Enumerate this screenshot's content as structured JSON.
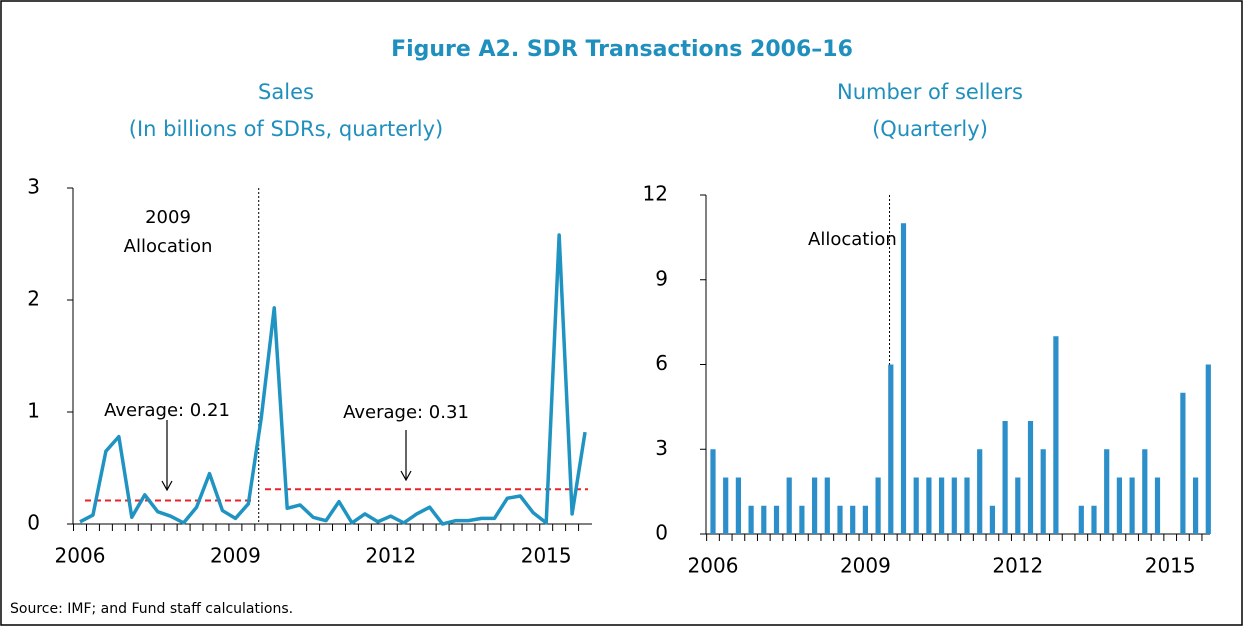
{
  "title": "Figure A2. SDR Transactions 2006–16",
  "source": "Source: IMF; and Fund staff calculations.",
  "chart_data": [
    {
      "type": "line",
      "title": "Sales",
      "subtitle": "(In billions of SDRs, quarterly)",
      "categories": [
        "2006",
        null,
        null,
        null,
        null,
        null,
        null,
        null,
        null,
        null,
        null,
        null,
        "2009",
        null,
        null,
        null,
        null,
        null,
        null,
        null,
        null,
        null,
        null,
        null,
        "2012",
        null,
        null,
        null,
        null,
        null,
        null,
        null,
        null,
        null,
        null,
        null,
        "2015",
        null,
        null,
        null
      ],
      "values": [
        0.02,
        0.08,
        0.65,
        0.78,
        0.06,
        0.26,
        0.11,
        0.07,
        0.01,
        0.15,
        0.45,
        0.12,
        0.05,
        0.18,
        0.95,
        1.93,
        0.14,
        0.17,
        0.06,
        0.03,
        0.2,
        0.01,
        0.09,
        0.02,
        0.07,
        0.01,
        0.09,
        0.15,
        0.0,
        0.03,
        0.03,
        0.05,
        0.05,
        0.23,
        0.25,
        0.1,
        0.01,
        2.58,
        0.09,
        0.82
      ],
      "color": "#1f94c2",
      "annotations": [
        "2009",
        "Allocation"
      ],
      "reference_lines": [
        {
          "value": 0.21,
          "label": "Average: 0.21",
          "color": "#e8232a"
        },
        {
          "value": 0.31,
          "label": "Average: 0.31",
          "color": "#e8232a"
        }
      ],
      "ylim": [
        0,
        3
      ],
      "yticks": [
        0,
        1,
        2,
        3
      ],
      "grid": false
    },
    {
      "type": "bar",
      "title": "Number of sellers",
      "subtitle": "(Quarterly)",
      "categories": [
        "2006",
        null,
        null,
        null,
        null,
        null,
        null,
        null,
        null,
        null,
        null,
        null,
        "2009",
        null,
        null,
        null,
        null,
        null,
        null,
        null,
        null,
        null,
        null,
        null,
        "2012",
        null,
        null,
        null,
        null,
        null,
        null,
        null,
        null,
        null,
        null,
        null,
        "2015",
        null,
        null,
        null
      ],
      "values": [
        3,
        2,
        2,
        1,
        1,
        1,
        2,
        1,
        2,
        2,
        1,
        1,
        1,
        2,
        6,
        11,
        2,
        2,
        2,
        2,
        2,
        3,
        1,
        4,
        2,
        4,
        3,
        7,
        0,
        1,
        1,
        3,
        2,
        2,
        3,
        2,
        0,
        5,
        2,
        6
      ],
      "color": "#2c8fc9",
      "annotations": [
        "Allocation"
      ],
      "ylim": [
        0,
        12
      ],
      "yticks": [
        0,
        3,
        6,
        9,
        12
      ],
      "grid": false
    }
  ]
}
